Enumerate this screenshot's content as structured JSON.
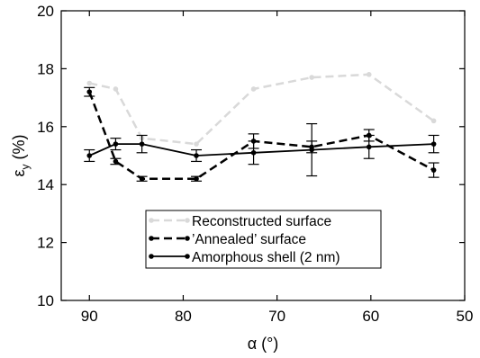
{
  "chart_data": {
    "type": "line",
    "xlabel": "α (°)",
    "ylabel_main": "ε",
    "ylabel_sub": "y",
    "ylabel_unit": " (%)",
    "xlim": [
      93,
      50
    ],
    "ylim": [
      10,
      20
    ],
    "x_ticks": [
      90,
      80,
      70,
      60,
      50
    ],
    "y_ticks": [
      10,
      12,
      14,
      16,
      18,
      20
    ],
    "grid": false,
    "legend_position": "bottom-center",
    "series": [
      {
        "name": "Reconstructed surface",
        "color": "#d9d9d9",
        "dash": "dashed",
        "x": [
          90,
          87.2,
          84.4,
          78.6,
          72.5,
          66.3,
          60.2,
          53.3
        ],
        "y": [
          17.5,
          17.3,
          15.6,
          15.4,
          17.3,
          17.7,
          17.8,
          16.2
        ]
      },
      {
        "name": "’Annealed’ surface",
        "color": "#000000",
        "dash": "dashed",
        "x": [
          90,
          87.2,
          84.4,
          78.6,
          72.5,
          66.3,
          60.2,
          53.3
        ],
        "y": [
          17.2,
          14.8,
          14.2,
          14.2,
          15.5,
          15.3,
          15.7,
          14.5
        ],
        "err": [
          0.15,
          0.1,
          0.08,
          0.08,
          0.25,
          0.2,
          0.2,
          0.25
        ]
      },
      {
        "name": "Amorphous shell (2 nm)",
        "color": "#000000",
        "dash": "solid",
        "x": [
          90,
          87.2,
          84.4,
          78.6,
          72.5,
          66.3,
          60.2,
          53.3
        ],
        "y": [
          15.0,
          15.4,
          15.4,
          15.0,
          15.1,
          15.2,
          15.3,
          15.4
        ],
        "err": [
          0.2,
          0.2,
          0.3,
          0.2,
          0.4,
          0.9,
          0.4,
          0.3
        ]
      }
    ]
  }
}
